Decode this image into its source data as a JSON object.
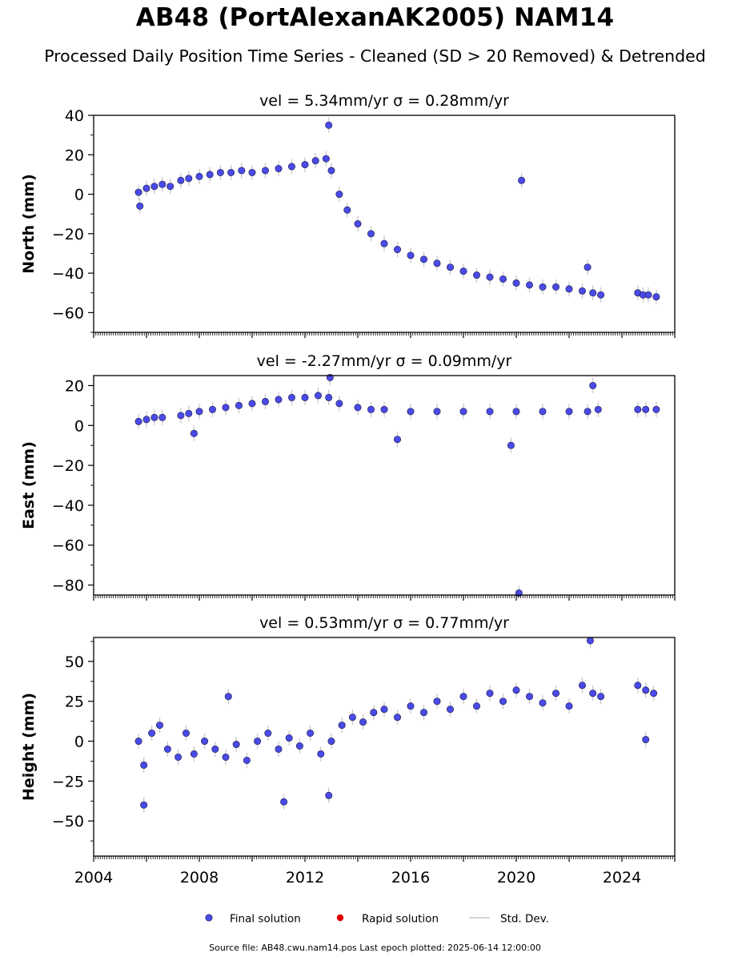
{
  "figure": {
    "title": "AB48 (PortAlexanAK2005) NAM14",
    "subtitle": "Processed Daily Position Time Series - Cleaned (SD > 20 Removed) & Detrended",
    "footer": "Source file: AB48.cwu.nam14.pos  Last epoch plotted: 2025-06-14 12:00:00"
  },
  "colors": {
    "final": "#4a4ae8",
    "final_edge": "#1a1a40",
    "rapid": "#e00000",
    "stddev": "#c8c8c8"
  },
  "legend": {
    "final": "Final solution",
    "rapid": "Rapid solution",
    "stddev": "Std. Dev."
  },
  "chart_data": [
    {
      "type": "scatter",
      "title": "vel = 5.34mm/yr   σ = 0.28mm/yr",
      "ylabel": "North (mm)",
      "xlim": [
        2004.0,
        2026.0
      ],
      "ylim": [
        -70,
        40
      ],
      "yticks": [
        40,
        20,
        0,
        -20,
        -40,
        -60
      ],
      "ytick_labels": [
        "40",
        "20",
        "0",
        "−20",
        "−40",
        "−60"
      ],
      "series": [
        {
          "name": "Final solution",
          "x": [
            2005.7,
            2006.0,
            2006.3,
            2006.6,
            2006.9,
            2007.3,
            2007.6,
            2008.0,
            2008.4,
            2008.8,
            2009.2,
            2009.6,
            2010.0,
            2010.5,
            2011.0,
            2011.5,
            2012.0,
            2012.4,
            2012.8,
            2013.0,
            2013.3,
            2013.6,
            2014.0,
            2014.5,
            2015.0,
            2015.5,
            2016.0,
            2016.5,
            2017.0,
            2017.5,
            2018.0,
            2018.5,
            2019.0,
            2019.5,
            2020.0,
            2020.5,
            2021.0,
            2021.5,
            2022.0,
            2022.5,
            2022.9,
            2023.2,
            2024.6,
            2024.8,
            2025.0,
            2025.3,
            2012.9,
            2020.2,
            2022.7,
            2005.75
          ],
          "y": [
            1,
            3,
            4,
            5,
            4,
            7,
            8,
            9,
            10,
            11,
            11,
            12,
            11,
            12,
            13,
            14,
            15,
            17,
            18,
            12,
            0,
            -8,
            -15,
            -20,
            -25,
            -28,
            -31,
            -33,
            -35,
            -37,
            -39,
            -41,
            -42,
            -43,
            -45,
            -46,
            -47,
            -47,
            -48,
            -49,
            -50,
            -51,
            -50,
            -51,
            -51,
            -52,
            35,
            7,
            -37,
            -6
          ]
        },
        {
          "name": "Rapid solution",
          "x": [],
          "y": []
        }
      ]
    },
    {
      "type": "scatter",
      "title": "vel = -2.27mm/yr   σ = 0.09mm/yr",
      "ylabel": "East (mm)",
      "xlim": [
        2004.0,
        2026.0
      ],
      "ylim": [
        -85,
        25
      ],
      "yticks": [
        20,
        0,
        -20,
        -40,
        -60,
        -80
      ],
      "ytick_labels": [
        "20",
        "0",
        "−20",
        "−40",
        "−60",
        "−80"
      ],
      "series": [
        {
          "name": "Final solution",
          "x": [
            2005.7,
            2006.0,
            2006.3,
            2006.6,
            2007.3,
            2007.6,
            2008.0,
            2008.5,
            2009.0,
            2009.5,
            2010.0,
            2010.5,
            2011.0,
            2011.5,
            2012.0,
            2012.5,
            2012.9,
            2013.3,
            2014.0,
            2014.5,
            2015.0,
            2016.0,
            2017.0,
            2018.0,
            2019.0,
            2020.0,
            2021.0,
            2022.0,
            2022.7,
            2023.1,
            2024.6,
            2024.9,
            2025.3,
            2012.95,
            2019.8,
            2020.1,
            2022.9,
            2015.5,
            2007.8
          ],
          "y": [
            2,
            3,
            4,
            4,
            5,
            6,
            7,
            8,
            9,
            10,
            11,
            12,
            13,
            14,
            14,
            15,
            14,
            11,
            9,
            8,
            8,
            7,
            7,
            7,
            7,
            7,
            7,
            7,
            7,
            8,
            8,
            8,
            8,
            24,
            -10,
            -84,
            20,
            -7,
            -4
          ]
        },
        {
          "name": "Rapid solution",
          "x": [],
          "y": []
        }
      ]
    },
    {
      "type": "scatter",
      "title": "vel = 0.53mm/yr   σ = 0.77mm/yr",
      "ylabel": "Height (mm)",
      "xlim": [
        2004.0,
        2026.0
      ],
      "ylim": [
        -72,
        65
      ],
      "yticks": [
        50,
        25,
        0,
        -25,
        -50
      ],
      "ytick_labels": [
        "50",
        "25",
        "0",
        "−25",
        "−50"
      ],
      "xticks": [
        2004,
        2008,
        2012,
        2016,
        2020,
        2024
      ],
      "xtick_labels": [
        "2004",
        "2008",
        "2012",
        "2016",
        "2020",
        "2024"
      ],
      "series": [
        {
          "name": "Final solution",
          "x": [
            2005.7,
            2005.9,
            2006.2,
            2006.5,
            2006.8,
            2007.2,
            2007.5,
            2007.8,
            2008.2,
            2008.6,
            2009.0,
            2009.4,
            2009.8,
            2010.2,
            2010.6,
            2011.0,
            2011.4,
            2011.8,
            2012.2,
            2012.6,
            2013.0,
            2013.4,
            2013.8,
            2014.2,
            2014.6,
            2015.0,
            2015.5,
            2016.0,
            2016.5,
            2017.0,
            2017.5,
            2018.0,
            2018.5,
            2019.0,
            2019.5,
            2020.0,
            2020.5,
            2021.0,
            2021.5,
            2022.0,
            2022.5,
            2022.9,
            2023.2,
            2024.6,
            2024.9,
            2025.2,
            2005.9,
            2011.2,
            2012.9,
            2022.8,
            2024.9,
            2009.1
          ],
          "y": [
            0,
            -15,
            5,
            10,
            -5,
            -10,
            5,
            -8,
            0,
            -5,
            -10,
            -2,
            -12,
            0,
            5,
            -5,
            2,
            -3,
            5,
            -8,
            0,
            10,
            15,
            12,
            18,
            20,
            15,
            22,
            18,
            25,
            20,
            28,
            22,
            30,
            25,
            32,
            28,
            24,
            30,
            22,
            35,
            30,
            28,
            35,
            32,
            30,
            -40,
            -38,
            -34,
            63,
            1,
            28
          ]
        },
        {
          "name": "Rapid solution",
          "x": [],
          "y": []
        }
      ]
    }
  ]
}
